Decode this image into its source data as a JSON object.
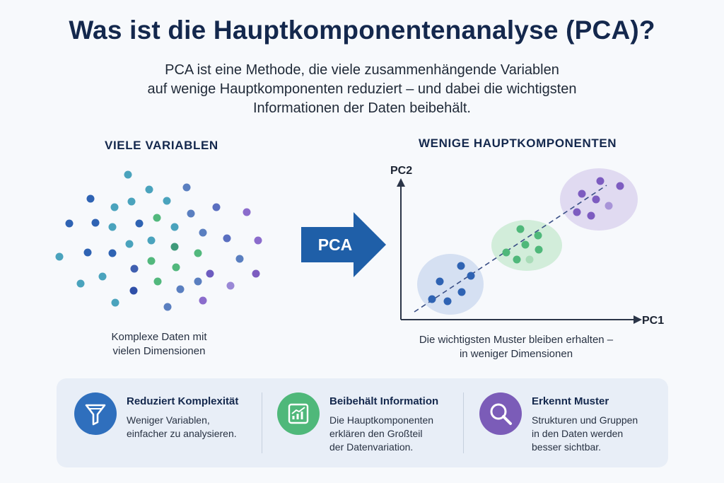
{
  "header": {
    "title": "Was ist die Hauptkomponentenanalyse (PCA)?",
    "subtitle_lines": [
      "PCA ist eine Methode, die viele zusammenhängende Variablen",
      "auf wenige Hauptkomponenten reduziert – und dabei die wichtigsten",
      "Informationen der Daten beibehält."
    ]
  },
  "left": {
    "heading": "VIELE VARIABLEN",
    "caption_lines": [
      "Komplexe Daten mit",
      "vielen Dimensionen"
    ]
  },
  "arrow": {
    "label": "PCA"
  },
  "right": {
    "heading": "WENIGE HAUPTKOMPONENTEN",
    "axis_x": "PC1",
    "axis_y": "PC2",
    "caption_lines": [
      "Die wichtigsten Muster bleiben erhalten –",
      "in weniger Dimensionen"
    ]
  },
  "features": [
    {
      "title": "Reduziert Komplexität",
      "desc_lines": [
        "Weniger Variablen,",
        "einfacher zu analysieren."
      ],
      "icon": "funnel-icon",
      "color": "#2f6fbd"
    },
    {
      "title": "Beibehält Information",
      "desc_lines": [
        "Die Hauptkomponenten",
        "erklären den Großteil",
        "der Datenvariation."
      ],
      "icon": "chart-icon",
      "color": "#4fb87a"
    },
    {
      "title": "Erkennt Muster",
      "desc_lines": [
        "Strukturen und Gruppen",
        "in den Daten werden",
        "besser sichtbar."
      ],
      "icon": "magnifier-icon",
      "color": "#7b5cb8"
    }
  ],
  "colors": {
    "navy": "#14284d",
    "blue": "#2f63b3",
    "teal": "#4aa3bd",
    "green": "#52b87d",
    "purple": "#7d5cc0",
    "arrow": "#1f5fa8"
  }
}
